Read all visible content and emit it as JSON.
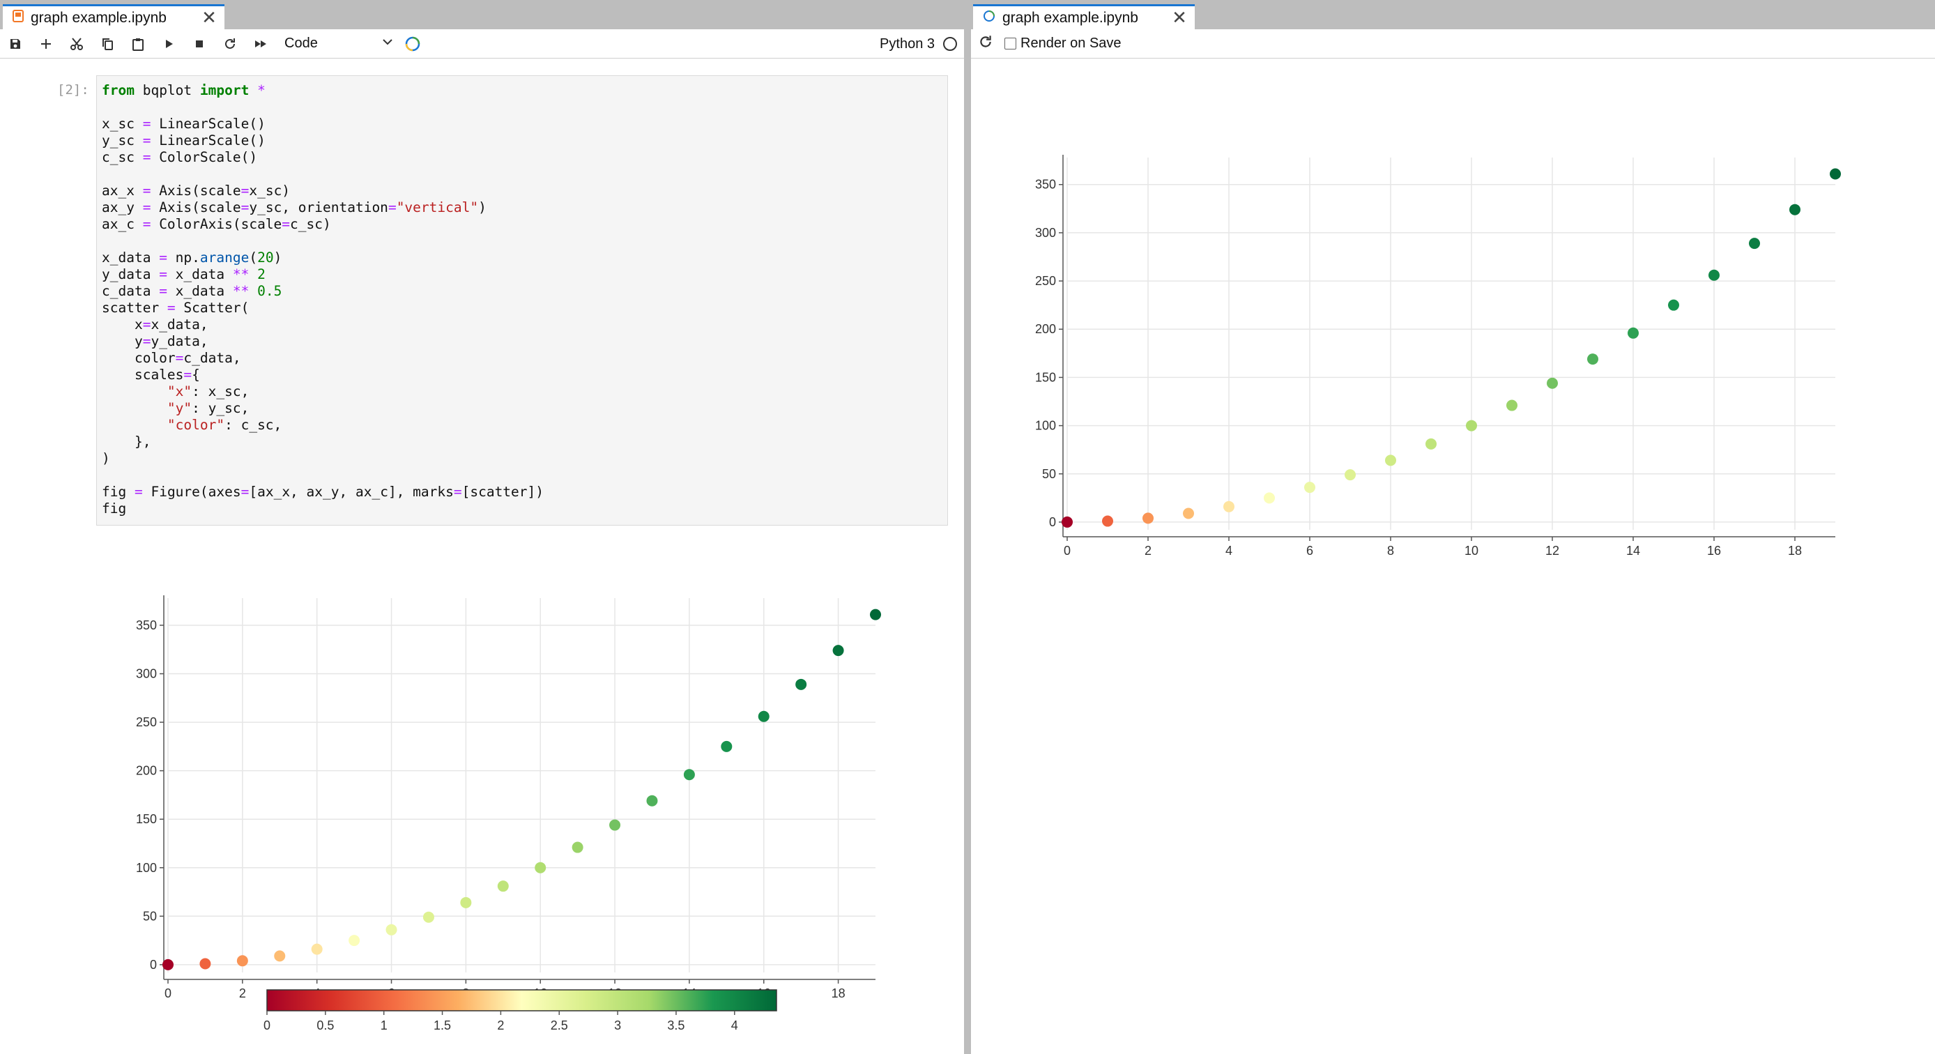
{
  "left_tab": {
    "title": "graph example.ipynb"
  },
  "right_tab": {
    "title": "graph example.ipynb"
  },
  "toolbar": {
    "cell_type": "Code",
    "kernel_name": "Python 3"
  },
  "preview_toolbar": {
    "render_on_save_label": "Render on Save",
    "render_on_save_checked": false
  },
  "cell": {
    "prompt": "[2]:"
  },
  "colors": {
    "accent": "#1976d2",
    "tab_icon_notebook": "#f37726",
    "code_bg": "#f5f5f5"
  },
  "chart_data": [
    {
      "type": "scatter",
      "x": [
        0,
        1,
        2,
        3,
        4,
        5,
        6,
        7,
        8,
        9,
        10,
        11,
        12,
        13,
        14,
        15,
        16,
        17,
        18,
        19
      ],
      "y": [
        0,
        1,
        4,
        9,
        16,
        25,
        36,
        49,
        64,
        81,
        100,
        121,
        144,
        169,
        196,
        225,
        256,
        289,
        324,
        361
      ],
      "color_values": [
        0,
        1,
        1.414,
        1.732,
        2,
        2.236,
        2.449,
        2.646,
        2.828,
        3,
        3.162,
        3.317,
        3.464,
        3.606,
        3.742,
        3.873,
        4,
        4.123,
        4.243,
        4.359
      ],
      "xlim": [
        0,
        19
      ],
      "ylim": [
        -8,
        378
      ],
      "x_ticks": [
        0,
        2,
        4,
        6,
        8,
        10,
        12,
        14,
        16,
        18
      ],
      "y_ticks": [
        0,
        50,
        100,
        150,
        200,
        250,
        300,
        350
      ],
      "color_scale": "RdYlGn",
      "colorbar_ticks": [
        0,
        0.5,
        1,
        1.5,
        2,
        2.5,
        3,
        3.5,
        4
      ],
      "colorbar_range": [
        0,
        4.359
      ],
      "grid": true
    },
    {
      "type": "scatter",
      "x": [
        0,
        1,
        2,
        3,
        4,
        5,
        6,
        7,
        8,
        9,
        10,
        11,
        12,
        13,
        14,
        15,
        16,
        17,
        18,
        19
      ],
      "y": [
        0,
        1,
        4,
        9,
        16,
        25,
        36,
        49,
        64,
        81,
        100,
        121,
        144,
        169,
        196,
        225,
        256,
        289,
        324,
        361
      ],
      "color_values": [
        0,
        1,
        1.414,
        1.732,
        2,
        2.236,
        2.449,
        2.646,
        2.828,
        3,
        3.162,
        3.317,
        3.464,
        3.606,
        3.742,
        3.873,
        4,
        4.123,
        4.243,
        4.359
      ],
      "xlim": [
        0,
        19
      ],
      "ylim": [
        -8,
        378
      ],
      "x_ticks": [
        0,
        2,
        4,
        6,
        8,
        10,
        12,
        14,
        16,
        18
      ],
      "y_ticks": [
        0,
        50,
        100,
        150,
        200,
        250,
        300,
        350
      ],
      "color_scale": "RdYlGn",
      "grid": true
    }
  ]
}
